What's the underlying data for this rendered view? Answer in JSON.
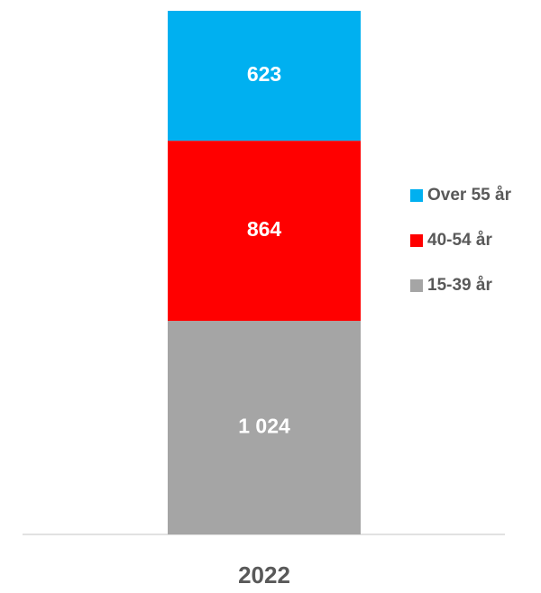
{
  "chart_data": {
    "type": "stacked_bar",
    "categories": [
      "2022"
    ],
    "series": [
      {
        "name": "15-39 år",
        "color": "#a5a5a5",
        "values": [
          1024
        ],
        "value_labels": [
          "1 024"
        ]
      },
      {
        "name": "40-54 år",
        "color": "#ff0000",
        "values": [
          864
        ],
        "value_labels": [
          "864"
        ]
      },
      {
        "name": "Over 55 år",
        "color": "#00b0f0",
        "values": [
          623
        ],
        "value_labels": [
          "623"
        ]
      }
    ],
    "legend": "right"
  }
}
